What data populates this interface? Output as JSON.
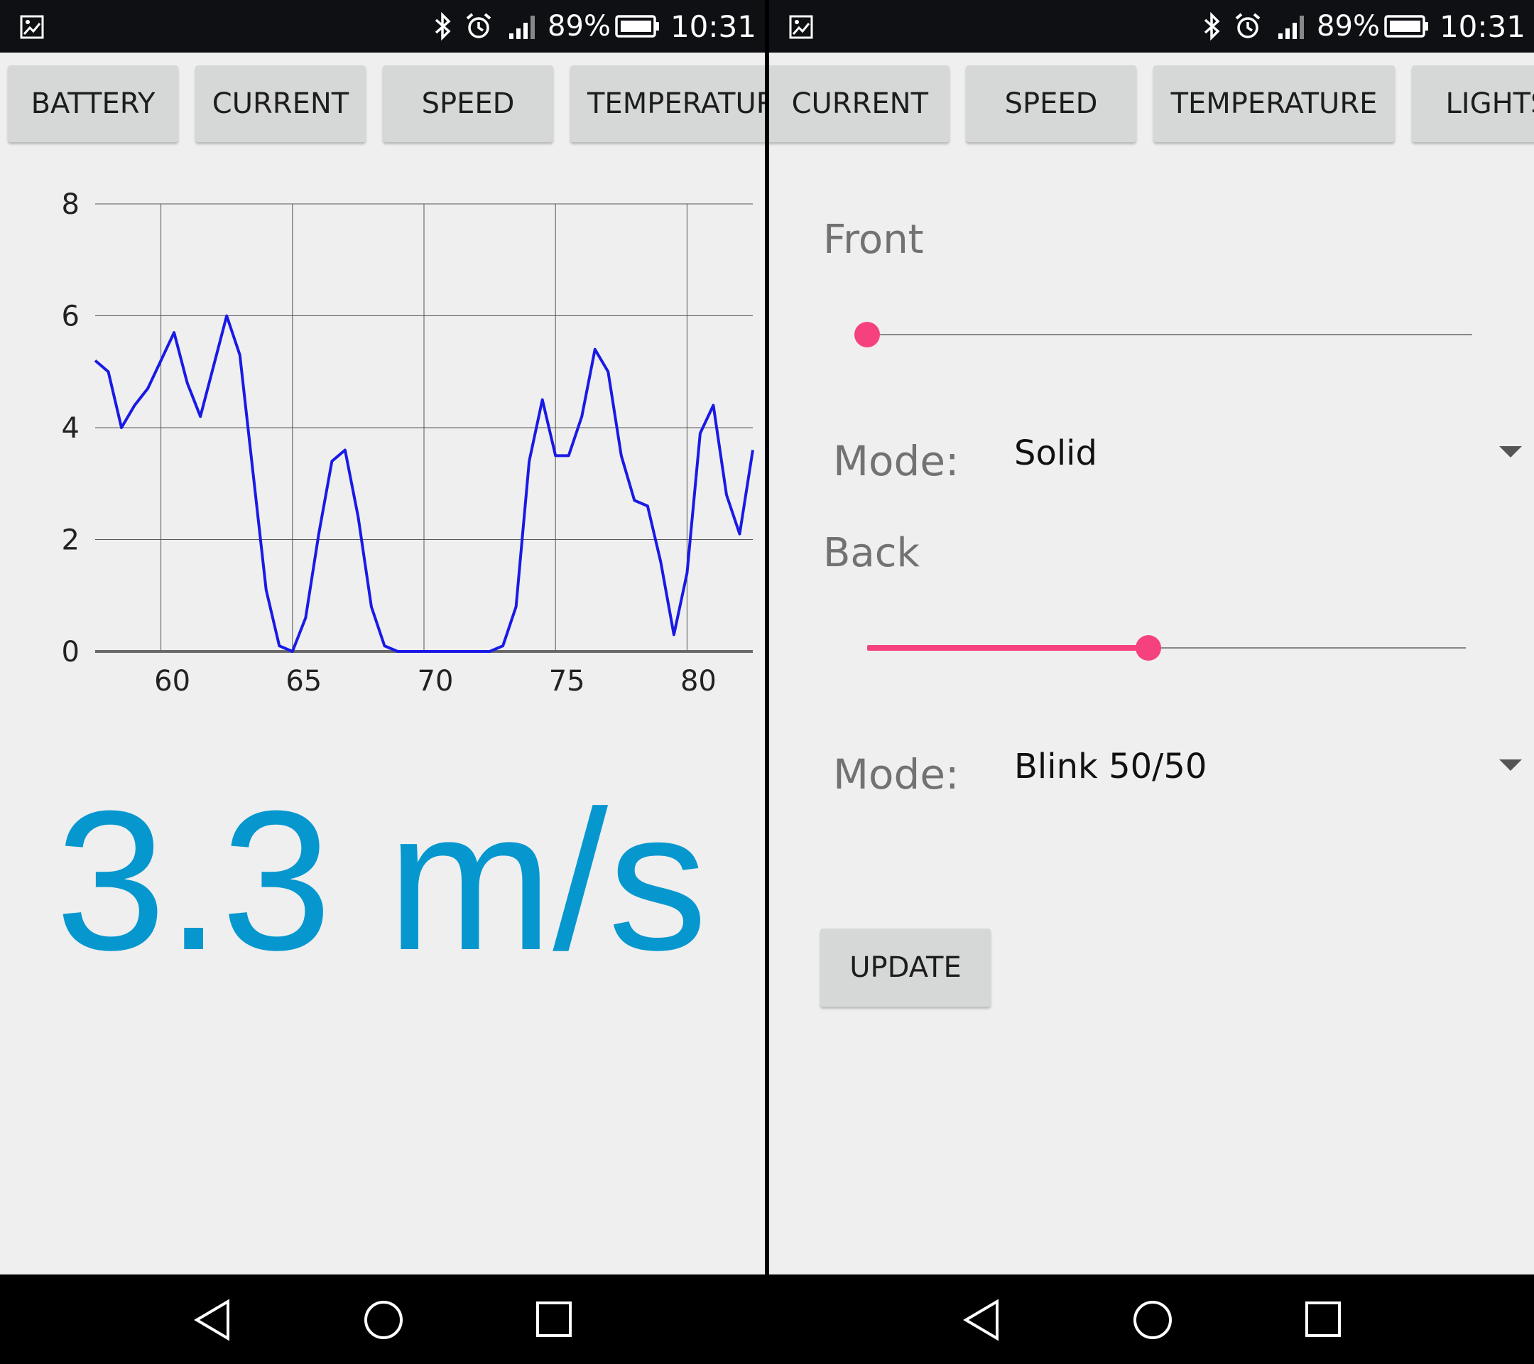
{
  "status_bar": {
    "battery": "89%",
    "time": "10:31"
  },
  "left_panel": {
    "tabs": [
      "BATTERY",
      "CURRENT",
      "SPEED",
      "TEMPERATURE"
    ],
    "speed_readout": "3.3 m/s"
  },
  "right_panel": {
    "tabs": [
      "CURRENT",
      "SPEED",
      "TEMPERATURE",
      "LIGHTS"
    ],
    "front": {
      "label": "Front",
      "slider_value": 0,
      "mode_label": "Mode:",
      "mode_value": "Solid"
    },
    "back": {
      "label": "Back",
      "slider_value": 0.47,
      "mode_label": "Mode:",
      "mode_value": "Blink 50/50"
    },
    "update_label": "UPDATE"
  },
  "colors": {
    "accent": "#f5427f",
    "speed_text": "#0697cf",
    "series_line": "#1a1ae6"
  },
  "chart_data": {
    "type": "line",
    "title": "",
    "xlabel": "",
    "ylabel": "",
    "xlim": [
      57.5,
      82.5
    ],
    "ylim": [
      0,
      8
    ],
    "x_ticks": [
      60,
      65,
      70,
      75,
      80
    ],
    "y_ticks": [
      0,
      2,
      4,
      6,
      8
    ],
    "grid": true,
    "series": [
      {
        "x": [
          57.5,
          58,
          58.5,
          59,
          59.5,
          60,
          60.5,
          61,
          61.5,
          62,
          62.5,
          63,
          63.5,
          64,
          64.5,
          65,
          65.5,
          66,
          66.5,
          67,
          67.5,
          68,
          68.5,
          69,
          69.5,
          70,
          70.5,
          71,
          71.5,
          72,
          72.5,
          73,
          73.5,
          74,
          74.5,
          75,
          75.5,
          76,
          76.5,
          77,
          77.5,
          78,
          78.5,
          79,
          79.5,
          80,
          80.5,
          81,
          81.5,
          82,
          82.5
        ],
        "y": [
          5.2,
          5.0,
          4.0,
          4.4,
          4.7,
          5.2,
          5.7,
          4.8,
          4.2,
          5.1,
          6.0,
          5.3,
          3.2,
          1.1,
          0.1,
          0.0,
          0.6,
          2.1,
          3.4,
          3.6,
          2.4,
          0.8,
          0.1,
          0.0,
          0.0,
          0.0,
          0.0,
          0.0,
          0.0,
          0.0,
          0.0,
          0.1,
          0.8,
          3.4,
          4.5,
          3.5,
          3.5,
          4.2,
          5.4,
          5.0,
          3.5,
          2.7,
          2.6,
          1.6,
          0.3,
          1.4,
          3.9,
          4.4,
          2.8,
          2.1,
          3.6
        ]
      }
    ]
  }
}
